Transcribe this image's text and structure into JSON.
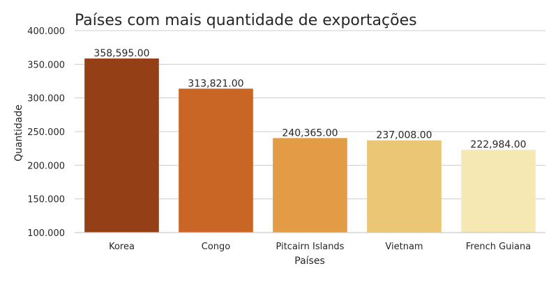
{
  "chart_data": {
    "type": "bar",
    "title": "Países com mais quantidade de exportações",
    "xlabel": "Países",
    "ylabel": "Quantidade",
    "categories": [
      "Korea",
      "Congo",
      "Pitcairn Islands",
      "Vietnam",
      "French Guiana"
    ],
    "values": [
      358595.0,
      313821.0,
      240365.0,
      237008.0,
      222984.0
    ],
    "data_labels": [
      "358,595.00",
      "313,821.00",
      "240,365.00",
      "237,008.00",
      "222,984.00"
    ],
    "colors": [
      "#953f16",
      "#c96625",
      "#e39b45",
      "#ebc675",
      "#f6e8b3"
    ],
    "ylim": [
      100000,
      400000
    ],
    "yticks": [
      100000,
      150000,
      200000,
      250000,
      300000,
      350000,
      400000
    ],
    "ytick_labels": [
      "100.000",
      "150.000",
      "200.000",
      "250.000",
      "300.000",
      "350.000",
      "400.000"
    ],
    "grid": "horizontal",
    "legend": "none"
  }
}
